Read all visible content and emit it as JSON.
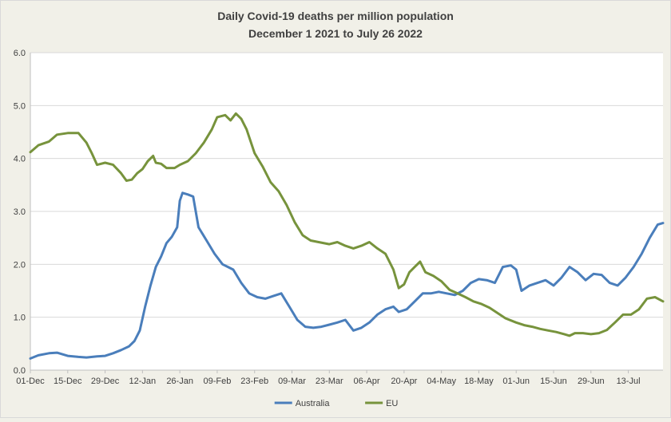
{
  "chart_data": {
    "type": "line",
    "title": "Daily Covid-19 deaths per million population",
    "subtitle": "December 1 2021 to July 26 2022",
    "xlabel": "",
    "ylabel": "",
    "ylim": [
      0,
      6
    ],
    "grid": true,
    "legend_position": "bottom",
    "y_ticks": [
      "0.0",
      "1.0",
      "2.0",
      "3.0",
      "4.0",
      "5.0",
      "6.0"
    ],
    "x_ticks": [
      "01-Dec",
      "15-Dec",
      "29-Dec",
      "12-Jan",
      "26-Jan",
      "09-Feb",
      "23-Feb",
      "09-Mar",
      "23-Mar",
      "06-Apr",
      "20-Apr",
      "04-May",
      "18-May",
      "01-Jun",
      "15-Jun",
      "29-Jun",
      "13-Jul"
    ],
    "x_range": [
      "01-Dec",
      "26-Jul"
    ],
    "series": [
      {
        "name": "Australia",
        "color": "#4a7ebb",
        "points": [
          [
            "01-Dec",
            0.22
          ],
          [
            "04-Dec",
            0.28
          ],
          [
            "08-Dec",
            0.32
          ],
          [
            "11-Dec",
            0.33
          ],
          [
            "15-Dec",
            0.27
          ],
          [
            "19-Dec",
            0.25
          ],
          [
            "22-Dec",
            0.24
          ],
          [
            "26-Dec",
            0.26
          ],
          [
            "29-Dec",
            0.27
          ],
          [
            "01-Jan",
            0.32
          ],
          [
            "04-Jan",
            0.38
          ],
          [
            "07-Jan",
            0.45
          ],
          [
            "09-Jan",
            0.55
          ],
          [
            "11-Jan",
            0.75
          ],
          [
            "13-Jan",
            1.2
          ],
          [
            "15-Jan",
            1.6
          ],
          [
            "17-Jan",
            1.95
          ],
          [
            "19-Jan",
            2.15
          ],
          [
            "21-Jan",
            2.4
          ],
          [
            "23-Jan",
            2.52
          ],
          [
            "25-Jan",
            2.7
          ],
          [
            "26-Jan",
            3.2
          ],
          [
            "27-Jan",
            3.35
          ],
          [
            "29-Jan",
            3.32
          ],
          [
            "31-Jan",
            3.28
          ],
          [
            "02-Feb",
            2.7
          ],
          [
            "05-Feb",
            2.45
          ],
          [
            "08-Feb",
            2.2
          ],
          [
            "11-Feb",
            2.0
          ],
          [
            "13-Feb",
            1.95
          ],
          [
            "15-Feb",
            1.9
          ],
          [
            "18-Feb",
            1.65
          ],
          [
            "21-Feb",
            1.45
          ],
          [
            "24-Feb",
            1.38
          ],
          [
            "27-Feb",
            1.35
          ],
          [
            "02-Mar",
            1.4
          ],
          [
            "05-Mar",
            1.45
          ],
          [
            "08-Mar",
            1.2
          ],
          [
            "11-Mar",
            0.95
          ],
          [
            "14-Mar",
            0.82
          ],
          [
            "17-Mar",
            0.8
          ],
          [
            "20-Mar",
            0.82
          ],
          [
            "23-Mar",
            0.86
          ],
          [
            "26-Mar",
            0.9
          ],
          [
            "29-Mar",
            0.95
          ],
          [
            "01-Apr",
            0.75
          ],
          [
            "04-Apr",
            0.8
          ],
          [
            "07-Apr",
            0.9
          ],
          [
            "10-Apr",
            1.05
          ],
          [
            "13-Apr",
            1.15
          ],
          [
            "16-Apr",
            1.2
          ],
          [
            "18-Apr",
            1.1
          ],
          [
            "21-Apr",
            1.15
          ],
          [
            "24-Apr",
            1.3
          ],
          [
            "27-Apr",
            1.45
          ],
          [
            "30-Apr",
            1.45
          ],
          [
            "03-May",
            1.48
          ],
          [
            "06-May",
            1.45
          ],
          [
            "09-May",
            1.42
          ],
          [
            "12-May",
            1.5
          ],
          [
            "15-May",
            1.65
          ],
          [
            "18-May",
            1.72
          ],
          [
            "21-May",
            1.7
          ],
          [
            "24-May",
            1.65
          ],
          [
            "27-May",
            1.95
          ],
          [
            "30-May",
            1.98
          ],
          [
            "01-Jun",
            1.9
          ],
          [
            "03-Jun",
            1.5
          ],
          [
            "06-Jun",
            1.6
          ],
          [
            "09-Jun",
            1.65
          ],
          [
            "12-Jun",
            1.7
          ],
          [
            "15-Jun",
            1.6
          ],
          [
            "18-Jun",
            1.75
          ],
          [
            "21-Jun",
            1.95
          ],
          [
            "24-Jun",
            1.85
          ],
          [
            "27-Jun",
            1.7
          ],
          [
            "30-Jun",
            1.82
          ],
          [
            "03-Jul",
            1.8
          ],
          [
            "06-Jul",
            1.65
          ],
          [
            "09-Jul",
            1.6
          ],
          [
            "12-Jul",
            1.75
          ],
          [
            "15-Jul",
            1.95
          ],
          [
            "18-Jul",
            2.2
          ],
          [
            "21-Jul",
            2.5
          ],
          [
            "24-Jul",
            2.75
          ],
          [
            "26-Jul",
            2.78
          ]
        ]
      },
      {
        "name": "EU",
        "color": "#77933c",
        "points": [
          [
            "01-Dec",
            4.12
          ],
          [
            "04-Dec",
            4.25
          ],
          [
            "08-Dec",
            4.32
          ],
          [
            "11-Dec",
            4.45
          ],
          [
            "15-Dec",
            4.48
          ],
          [
            "19-Dec",
            4.48
          ],
          [
            "22-Dec",
            4.3
          ],
          [
            "24-Dec",
            4.1
          ],
          [
            "26-Dec",
            3.88
          ],
          [
            "29-Dec",
            3.92
          ],
          [
            "01-Jan",
            3.88
          ],
          [
            "04-Jan",
            3.72
          ],
          [
            "06-Jan",
            3.58
          ],
          [
            "08-Jan",
            3.6
          ],
          [
            "10-Jan",
            3.72
          ],
          [
            "12-Jan",
            3.8
          ],
          [
            "14-Jan",
            3.95
          ],
          [
            "16-Jan",
            4.05
          ],
          [
            "17-Jan",
            3.92
          ],
          [
            "19-Jan",
            3.9
          ],
          [
            "21-Jan",
            3.82
          ],
          [
            "24-Jan",
            3.82
          ],
          [
            "26-Jan",
            3.88
          ],
          [
            "29-Jan",
            3.95
          ],
          [
            "01-Feb",
            4.1
          ],
          [
            "04-Feb",
            4.3
          ],
          [
            "07-Feb",
            4.55
          ],
          [
            "09-Feb",
            4.78
          ],
          [
            "12-Feb",
            4.82
          ],
          [
            "14-Feb",
            4.72
          ],
          [
            "16-Feb",
            4.85
          ],
          [
            "18-Feb",
            4.75
          ],
          [
            "20-Feb",
            4.55
          ],
          [
            "23-Feb",
            4.1
          ],
          [
            "26-Feb",
            3.85
          ],
          [
            "01-Mar",
            3.55
          ],
          [
            "04-Mar",
            3.38
          ],
          [
            "07-Mar",
            3.12
          ],
          [
            "10-Mar",
            2.8
          ],
          [
            "13-Mar",
            2.55
          ],
          [
            "16-Mar",
            2.45
          ],
          [
            "19-Mar",
            2.42
          ],
          [
            "23-Mar",
            2.38
          ],
          [
            "26-Mar",
            2.42
          ],
          [
            "29-Mar",
            2.35
          ],
          [
            "01-Apr",
            2.3
          ],
          [
            "04-Apr",
            2.35
          ],
          [
            "07-Apr",
            2.42
          ],
          [
            "10-Apr",
            2.3
          ],
          [
            "13-Apr",
            2.2
          ],
          [
            "16-Apr",
            1.9
          ],
          [
            "18-Apr",
            1.55
          ],
          [
            "20-Apr",
            1.62
          ],
          [
            "22-Apr",
            1.85
          ],
          [
            "24-Apr",
            1.95
          ],
          [
            "26-Apr",
            2.05
          ],
          [
            "28-Apr",
            1.85
          ],
          [
            "01-May",
            1.78
          ],
          [
            "04-May",
            1.68
          ],
          [
            "07-May",
            1.52
          ],
          [
            "10-May",
            1.45
          ],
          [
            "13-May",
            1.38
          ],
          [
            "16-May",
            1.3
          ],
          [
            "19-May",
            1.25
          ],
          [
            "22-May",
            1.18
          ],
          [
            "25-May",
            1.08
          ],
          [
            "28-May",
            0.98
          ],
          [
            "01-Jun",
            0.9
          ],
          [
            "04-Jun",
            0.85
          ],
          [
            "07-Jun",
            0.82
          ],
          [
            "10-Jun",
            0.78
          ],
          [
            "13-Jun",
            0.75
          ],
          [
            "16-Jun",
            0.72
          ],
          [
            "19-Jun",
            0.68
          ],
          [
            "21-Jun",
            0.65
          ],
          [
            "23-Jun",
            0.7
          ],
          [
            "26-Jun",
            0.7
          ],
          [
            "29-Jun",
            0.68
          ],
          [
            "02-Jul",
            0.7
          ],
          [
            "05-Jul",
            0.76
          ],
          [
            "08-Jul",
            0.9
          ],
          [
            "11-Jul",
            1.05
          ],
          [
            "14-Jul",
            1.05
          ],
          [
            "17-Jul",
            1.15
          ],
          [
            "20-Jul",
            1.35
          ],
          [
            "23-Jul",
            1.38
          ],
          [
            "26-Jul",
            1.3
          ]
        ]
      }
    ]
  }
}
